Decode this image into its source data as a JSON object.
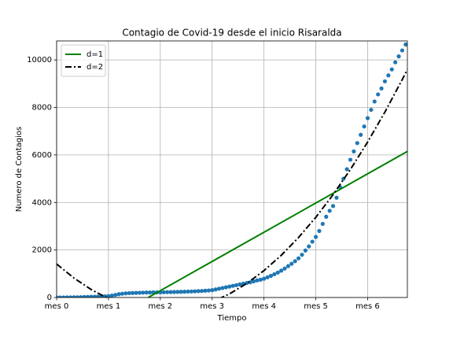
{
  "chart_data": {
    "type": "scatter",
    "title": "Contagio de Covid-19 desde el inicio Risaralda",
    "xlabel": "Tiempo",
    "ylabel": "Numero de Contagios",
    "xlim": [
      0,
      203
    ],
    "ylim": [
      0,
      10800
    ],
    "xticks": [
      {
        "value": 0,
        "label": "mes 0"
      },
      {
        "value": 30,
        "label": "mes 1"
      },
      {
        "value": 60,
        "label": "mes 2"
      },
      {
        "value": 90,
        "label": "mes 3"
      },
      {
        "value": 120,
        "label": "mes 4"
      },
      {
        "value": 150,
        "label": "mes 5"
      },
      {
        "value": 180,
        "label": "mes 6"
      }
    ],
    "yticks": [
      0,
      2000,
      4000,
      6000,
      8000,
      10000
    ],
    "grid": true,
    "legend": "upper left",
    "series": [
      {
        "type": "scatter",
        "color": "#1f77b4",
        "x": [
          0,
          2,
          4,
          6,
          8,
          10,
          12,
          14,
          16,
          18,
          20,
          22,
          24,
          26,
          28,
          30,
          32,
          34,
          36,
          38,
          40,
          42,
          44,
          46,
          48,
          50,
          52,
          54,
          56,
          58,
          60,
          62,
          64,
          66,
          68,
          70,
          72,
          74,
          76,
          78,
          80,
          82,
          84,
          86,
          88,
          90,
          92,
          94,
          96,
          98,
          100,
          102,
          104,
          106,
          108,
          110,
          112,
          114,
          116,
          118,
          120,
          122,
          124,
          126,
          128,
          130,
          132,
          134,
          136,
          138,
          140,
          142,
          144,
          146,
          148,
          150,
          152,
          154,
          156,
          158,
          160,
          162,
          164,
          166,
          168,
          170,
          172,
          174,
          176,
          178,
          180,
          182,
          184,
          186,
          188,
          190,
          192,
          194,
          196,
          198,
          200,
          202
        ],
        "values": [
          0,
          1,
          2,
          3,
          5,
          8,
          10,
          15,
          20,
          25,
          30,
          35,
          40,
          45,
          50,
          60,
          80,
          110,
          140,
          160,
          175,
          185,
          190,
          195,
          200,
          205,
          210,
          212,
          215,
          218,
          220,
          222,
          225,
          228,
          232,
          236,
          240,
          245,
          250,
          255,
          260,
          268,
          275,
          285,
          295,
          310,
          340,
          370,
          400,
          430,
          460,
          490,
          520,
          550,
          580,
          610,
          640,
          680,
          720,
          750,
          790,
          850,
          910,
          980,
          1050,
          1130,
          1220,
          1320,
          1420,
          1530,
          1650,
          1800,
          1980,
          2150,
          2350,
          2550,
          2800,
          3100,
          3400,
          3650,
          3850,
          4200,
          4650,
          5000,
          5400,
          5800,
          6150,
          6500,
          6850,
          7200,
          7550,
          7900,
          8250,
          8550,
          8800,
          9100,
          9350,
          9600,
          9900,
          10150,
          10400,
          10650
        ]
      },
      {
        "type": "line",
        "name": "d=1",
        "color": "#008000",
        "linestyle": "solid",
        "x": [
          53,
          203
        ],
        "values": [
          0,
          6150
        ]
      },
      {
        "type": "line",
        "name": "d=2",
        "color": "#000000",
        "linestyle": "dashdot",
        "x": [
          0,
          10,
          20,
          30,
          40,
          50,
          60,
          70,
          80,
          90,
          100,
          110,
          120,
          130,
          140,
          150,
          160,
          170,
          180,
          190,
          200,
          203
        ],
        "values": [
          1410,
          821,
          335,
          -47,
          -328,
          -505,
          -579,
          -551,
          -420,
          -186,
          151,
          590,
          1132,
          1777,
          2525,
          3376,
          4329,
          5386,
          6545,
          7807,
          9171,
          9600
        ]
      }
    ]
  }
}
